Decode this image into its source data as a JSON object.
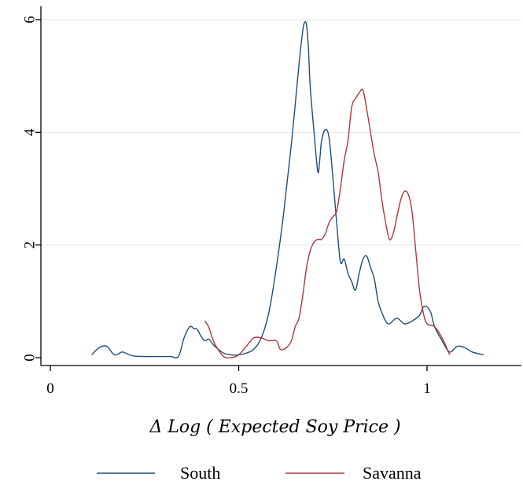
{
  "chart_data": {
    "type": "line",
    "title": "",
    "xlabel": "Δ Log ( Expected Soy Price )",
    "ylabel": "",
    "xlim": [
      0,
      1.25
    ],
    "ylim": [
      -0.2,
      6.2
    ],
    "grid": "horizontal",
    "legend_position": "bottom",
    "x_ticks": [
      {
        "value": 0,
        "label": "0"
      },
      {
        "value": 0.5,
        "label": "0.5"
      },
      {
        "value": 1,
        "label": "1"
      }
    ],
    "y_ticks": [
      {
        "value": 0,
        "label": "0"
      },
      {
        "value": 2,
        "label": "2"
      },
      {
        "value": 4,
        "label": "4"
      },
      {
        "value": 6,
        "label": "6"
      }
    ],
    "series": [
      {
        "name": "South",
        "color": "#1f4e79",
        "x": [
          0.11,
          0.13,
          0.15,
          0.17,
          0.19,
          0.2,
          0.22,
          0.25,
          0.28,
          0.3,
          0.32,
          0.34,
          0.355,
          0.37,
          0.38,
          0.39,
          0.4,
          0.41,
          0.42,
          0.43,
          0.44,
          0.46,
          0.48,
          0.5,
          0.52,
          0.54,
          0.56,
          0.58,
          0.6,
          0.62,
          0.64,
          0.66,
          0.67,
          0.675,
          0.68,
          0.685,
          0.69,
          0.7,
          0.71,
          0.715,
          0.72,
          0.73,
          0.74,
          0.75,
          0.76,
          0.77,
          0.78,
          0.79,
          0.8,
          0.81,
          0.82,
          0.83,
          0.84,
          0.85,
          0.86,
          0.87,
          0.88,
          0.89,
          0.9,
          0.92,
          0.94,
          0.96,
          0.98,
          0.99,
          1.0,
          1.01,
          1.02,
          1.04,
          1.06,
          1.08,
          1.1,
          1.12,
          1.15
        ],
        "y": [
          0.05,
          0.18,
          0.2,
          0.05,
          0.1,
          0.08,
          0.03,
          0.02,
          0.02,
          0.02,
          0.02,
          0.02,
          0.35,
          0.55,
          0.52,
          0.5,
          0.38,
          0.3,
          0.33,
          0.25,
          0.18,
          0.08,
          0.05,
          0.05,
          0.08,
          0.15,
          0.35,
          0.8,
          1.6,
          2.6,
          3.8,
          5.2,
          5.8,
          5.95,
          5.9,
          5.5,
          4.8,
          4.0,
          3.3,
          3.5,
          3.85,
          4.05,
          3.9,
          3.2,
          2.4,
          1.7,
          1.75,
          1.5,
          1.35,
          1.2,
          1.5,
          1.75,
          1.8,
          1.6,
          1.4,
          1.0,
          0.8,
          0.65,
          0.6,
          0.7,
          0.6,
          0.65,
          0.75,
          0.9,
          0.9,
          0.8,
          0.55,
          0.3,
          0.1,
          0.2,
          0.18,
          0.1,
          0.05
        ]
      },
      {
        "name": "Savanna",
        "color": "#a93a3a",
        "x": [
          0.41,
          0.42,
          0.43,
          0.44,
          0.46,
          0.48,
          0.5,
          0.52,
          0.54,
          0.56,
          0.58,
          0.6,
          0.61,
          0.62,
          0.63,
          0.64,
          0.65,
          0.66,
          0.67,
          0.68,
          0.69,
          0.7,
          0.71,
          0.72,
          0.73,
          0.74,
          0.75,
          0.76,
          0.77,
          0.78,
          0.79,
          0.8,
          0.81,
          0.82,
          0.83,
          0.84,
          0.85,
          0.86,
          0.87,
          0.88,
          0.89,
          0.9,
          0.91,
          0.92,
          0.93,
          0.94,
          0.95,
          0.96,
          0.97,
          0.98,
          0.99,
          1.0,
          1.02,
          1.04,
          1.06
        ],
        "y": [
          0.65,
          0.55,
          0.35,
          0.2,
          0.02,
          0.0,
          0.05,
          0.2,
          0.35,
          0.35,
          0.3,
          0.3,
          0.15,
          0.15,
          0.2,
          0.3,
          0.55,
          0.7,
          1.1,
          1.6,
          1.9,
          2.05,
          2.1,
          2.1,
          2.2,
          2.4,
          2.5,
          2.6,
          3.0,
          3.5,
          3.85,
          4.45,
          4.6,
          4.7,
          4.75,
          4.4,
          4.0,
          3.6,
          3.3,
          2.8,
          2.4,
          2.1,
          2.2,
          2.5,
          2.8,
          2.95,
          2.9,
          2.6,
          1.9,
          1.2,
          0.8,
          0.6,
          0.55,
          0.35,
          0.05
        ]
      }
    ]
  }
}
